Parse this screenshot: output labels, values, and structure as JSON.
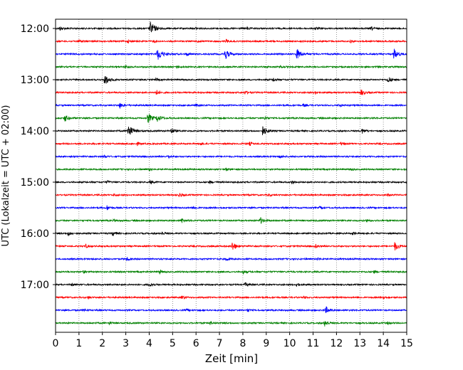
{
  "chart_data": {
    "type": "line",
    "title": "",
    "xlabel": "Zeit  [min]",
    "ylabel": "UTC (Lokalzeit = UTC + 02:00)",
    "xlim": [
      0,
      15
    ],
    "x_ticks": [
      0,
      1,
      2,
      3,
      4,
      5,
      6,
      7,
      8,
      9,
      10,
      11,
      12,
      13,
      14,
      15
    ],
    "y_ticks": [
      "12:00",
      "13:00",
      "14:00",
      "15:00",
      "16:00",
      "17:00"
    ],
    "grid": "vertical dotted",
    "trace_colors": [
      "#000000",
      "#ff0000",
      "#0000ff",
      "#008000"
    ],
    "traces": [
      {
        "start": "12:00",
        "color": "#000000",
        "events": [
          [
            0.2,
            0.3
          ],
          [
            4.05,
            1.0
          ],
          [
            6.0,
            0.2
          ],
          [
            8.2,
            0.2
          ],
          [
            11.1,
            0.25
          ],
          [
            13.5,
            0.25
          ]
        ]
      },
      {
        "start": "12:15",
        "color": "#ff0000",
        "events": [
          [
            1.0,
            0.25
          ],
          [
            3.1,
            0.2
          ],
          [
            4.2,
            0.2
          ],
          [
            6.1,
            0.2
          ],
          [
            7.3,
            0.25
          ],
          [
            12.6,
            0.2
          ]
        ]
      },
      {
        "start": "12:30",
        "color": "#0000ff",
        "events": [
          [
            4.35,
            1.0
          ],
          [
            5.6,
            0.25
          ],
          [
            7.25,
            0.75
          ],
          [
            10.3,
            0.85
          ],
          [
            14.45,
            0.8
          ]
        ]
      },
      {
        "start": "12:45",
        "color": "#008000",
        "events": [
          [
            3.0,
            0.2
          ],
          [
            5.2,
            0.2
          ],
          [
            9.6,
            0.2
          ]
        ]
      },
      {
        "start": "13:00",
        "color": "#000000",
        "events": [
          [
            2.1,
            0.85
          ],
          [
            4.3,
            0.2
          ],
          [
            9.3,
            0.3
          ],
          [
            14.2,
            0.5
          ]
        ]
      },
      {
        "start": "13:15",
        "color": "#ff0000",
        "events": [
          [
            4.3,
            0.4
          ],
          [
            8.1,
            0.25
          ],
          [
            11.1,
            0.2
          ],
          [
            13.05,
            0.5
          ]
        ]
      },
      {
        "start": "13:30",
        "color": "#0000ff",
        "events": [
          [
            2.75,
            0.4
          ],
          [
            6.0,
            0.2
          ],
          [
            10.6,
            0.2
          ],
          [
            12.1,
            0.2
          ]
        ]
      },
      {
        "start": "13:45",
        "color": "#008000",
        "events": [
          [
            0.4,
            0.55
          ],
          [
            3.95,
            0.75
          ],
          [
            4.35,
            0.55
          ],
          [
            8.95,
            0.3
          ]
        ]
      },
      {
        "start": "14:00",
        "color": "#000000",
        "events": [
          [
            3.1,
            1.0
          ],
          [
            4.95,
            0.45
          ],
          [
            8.85,
            0.75
          ],
          [
            13.1,
            0.35
          ]
        ]
      },
      {
        "start": "14:15",
        "color": "#ff0000",
        "events": [
          [
            3.5,
            0.2
          ],
          [
            6.2,
            0.2
          ],
          [
            8.3,
            0.25
          ],
          [
            12.2,
            0.2
          ]
        ]
      },
      {
        "start": "14:30",
        "color": "#0000ff",
        "events": [
          [
            2.1,
            0.2
          ],
          [
            4.8,
            0.25
          ],
          [
            9.6,
            0.2
          ]
        ]
      },
      {
        "start": "14:45",
        "color": "#008000",
        "events": [
          [
            4.0,
            0.2
          ],
          [
            7.3,
            0.2
          ],
          [
            12.6,
            0.2
          ]
        ]
      },
      {
        "start": "15:00",
        "color": "#000000",
        "events": [
          [
            2.2,
            0.2
          ],
          [
            4.05,
            0.3
          ],
          [
            6.6,
            0.2
          ],
          [
            10.1,
            0.25
          ]
        ]
      },
      {
        "start": "15:15",
        "color": "#ff0000",
        "events": [
          [
            2.5,
            0.2
          ],
          [
            5.3,
            0.3
          ],
          [
            9.1,
            0.2
          ],
          [
            14.2,
            0.2
          ]
        ]
      },
      {
        "start": "15:30",
        "color": "#0000ff",
        "events": [
          [
            2.2,
            0.35
          ],
          [
            5.9,
            0.25
          ],
          [
            11.3,
            0.2
          ]
        ]
      },
      {
        "start": "15:45",
        "color": "#008000",
        "events": [
          [
            2.5,
            0.2
          ],
          [
            5.4,
            0.35
          ],
          [
            8.75,
            0.5
          ],
          [
            13.3,
            0.2
          ]
        ]
      },
      {
        "start": "16:00",
        "color": "#000000",
        "events": [
          [
            0.55,
            0.3
          ],
          [
            2.45,
            0.35
          ],
          [
            4.55,
            0.25
          ],
          [
            12.7,
            0.2
          ]
        ]
      },
      {
        "start": "16:15",
        "color": "#ff0000",
        "events": [
          [
            1.3,
            0.25
          ],
          [
            7.55,
            0.7
          ],
          [
            11.1,
            0.25
          ],
          [
            14.5,
            0.65
          ]
        ]
      },
      {
        "start": "16:30",
        "color": "#0000ff",
        "events": [
          [
            3.05,
            0.25
          ],
          [
            7.3,
            0.25
          ],
          [
            11.2,
            0.2
          ]
        ]
      },
      {
        "start": "16:45",
        "color": "#008000",
        "events": [
          [
            1.2,
            0.2
          ],
          [
            4.45,
            0.25
          ],
          [
            8.0,
            0.3
          ],
          [
            13.6,
            0.2
          ]
        ]
      },
      {
        "start": "17:00",
        "color": "#000000",
        "events": [
          [
            0.7,
            0.2
          ],
          [
            4.0,
            0.3
          ],
          [
            8.1,
            0.3
          ],
          [
            10.3,
            0.25
          ]
        ]
      },
      {
        "start": "17:15",
        "color": "#ff0000",
        "events": [
          [
            1.4,
            0.2
          ],
          [
            5.4,
            0.25
          ],
          [
            10.6,
            0.2
          ],
          [
            14.0,
            0.3
          ]
        ]
      },
      {
        "start": "17:30",
        "color": "#0000ff",
        "events": [
          [
            1.2,
            0.2
          ],
          [
            5.6,
            0.2
          ],
          [
            8.2,
            0.25
          ],
          [
            11.55,
            0.5
          ]
        ]
      },
      {
        "start": "17:45",
        "color": "#008000",
        "events": [
          [
            2.3,
            0.2
          ],
          [
            6.6,
            0.25
          ],
          [
            11.5,
            0.45
          ],
          [
            14.2,
            0.2
          ]
        ]
      }
    ]
  }
}
